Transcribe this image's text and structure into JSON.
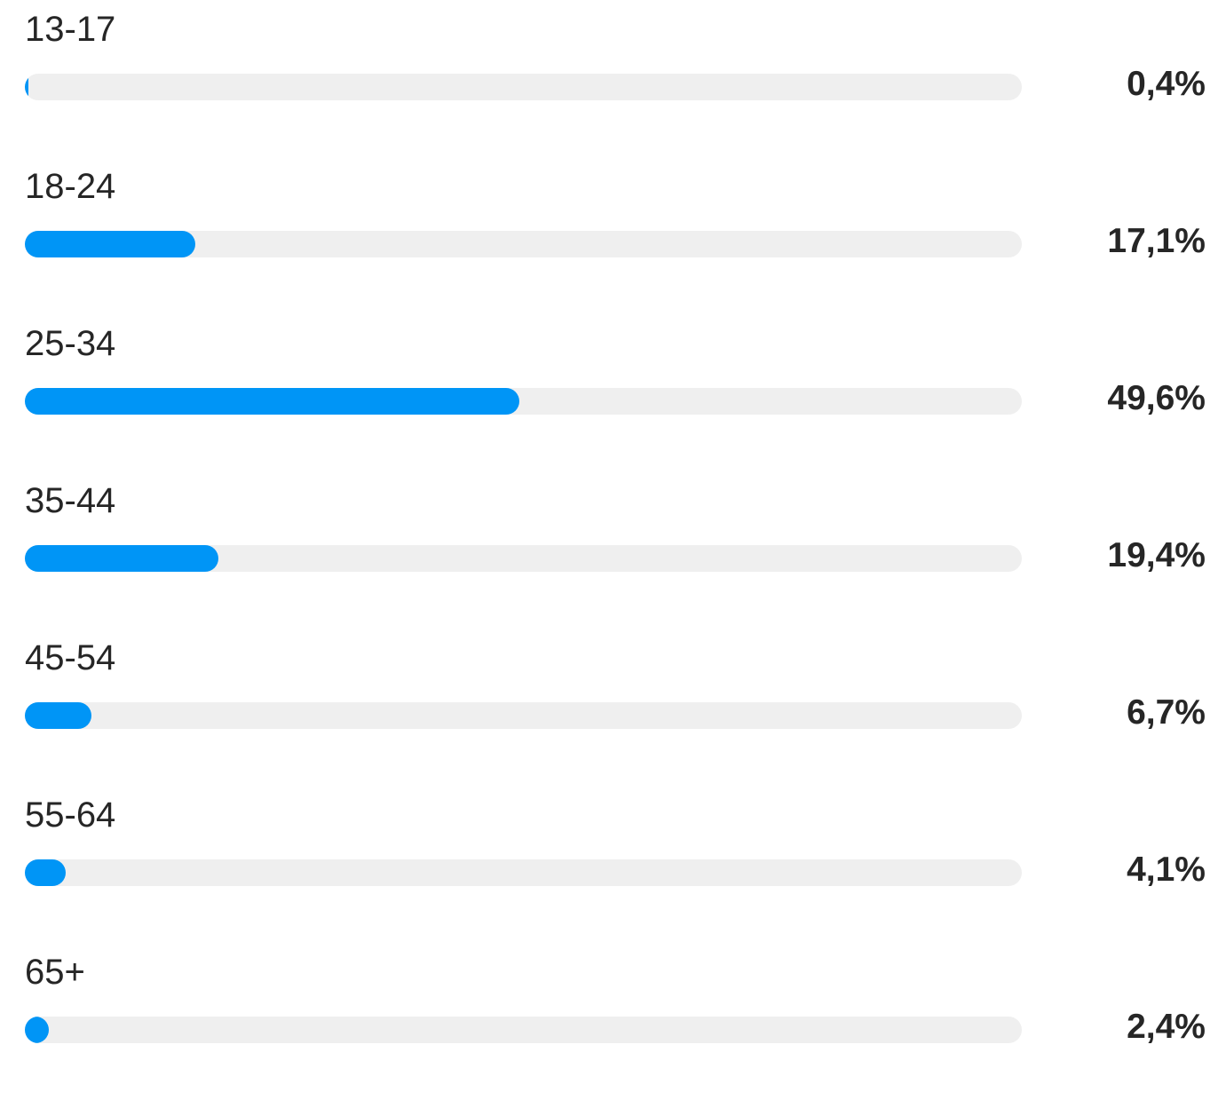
{
  "chart_data": {
    "type": "bar",
    "orientation": "horizontal",
    "categories": [
      "13-17",
      "18-24",
      "25-34",
      "35-44",
      "45-54",
      "55-64",
      "65+"
    ],
    "values": [
      0.4,
      17.1,
      49.6,
      19.4,
      6.7,
      4.1,
      2.4
    ],
    "value_labels": [
      "0,4%",
      "17,1%",
      "49,6%",
      "19,4%",
      "6,7%",
      "4,1%",
      "2,4%"
    ],
    "xlim": [
      0,
      100
    ],
    "title": "",
    "xlabel": "",
    "ylabel": "",
    "grid": false,
    "legend": "none"
  },
  "colors": {
    "bar_fill": "#0095f6",
    "bar_track": "#efefef",
    "text": "#262626",
    "background": "#ffffff"
  }
}
